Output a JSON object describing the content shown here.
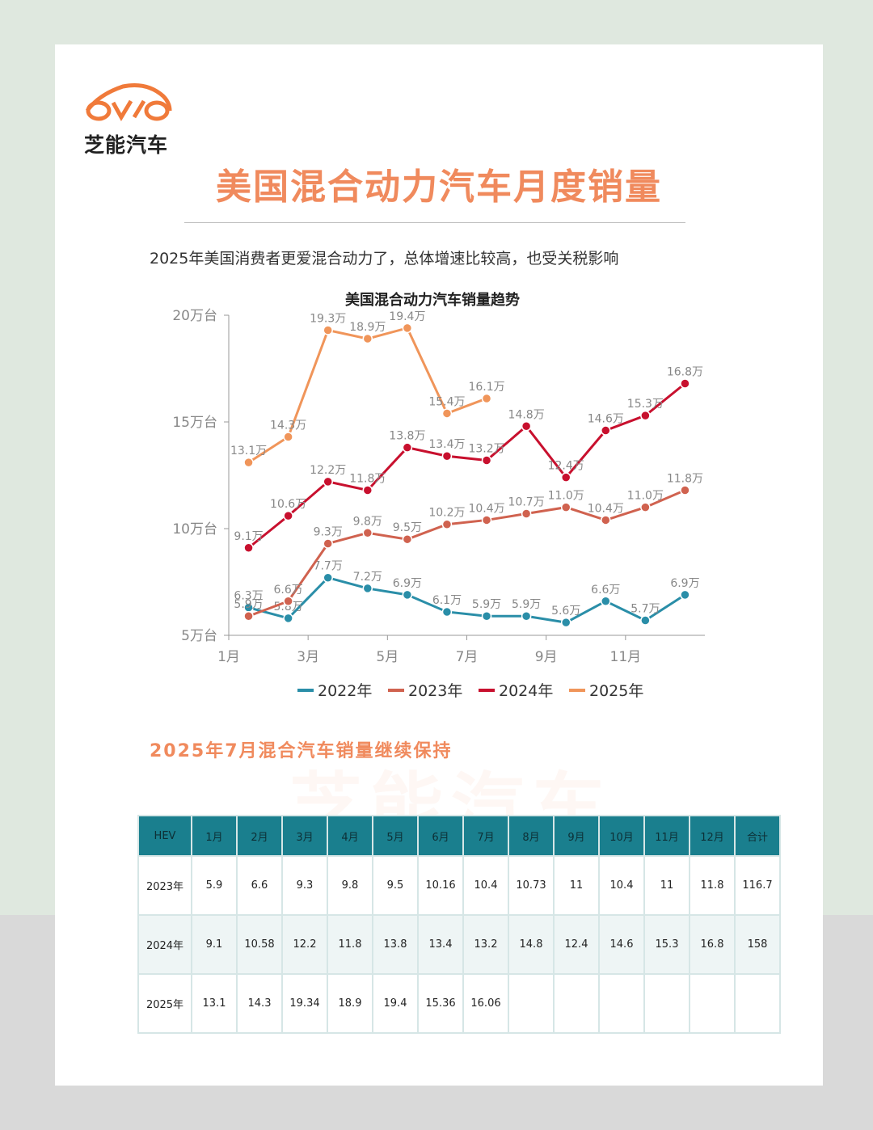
{
  "header": {
    "brand": "芝能汽车",
    "title": "美国混合动力汽车月度销量",
    "subtitle": "2025年美国消费者更爱混合动力了，总体增速比较高，也受关税影响"
  },
  "chart_data": {
    "type": "line",
    "title": "美国混合动力汽车销量趋势",
    "categories": [
      "1月",
      null,
      "3月",
      null,
      "5月",
      null,
      "7月",
      null,
      "9月",
      null,
      "11月",
      null
    ],
    "ylim": [
      5,
      20
    ],
    "yticks": [
      {
        "value": 5,
        "label": "5万台"
      },
      {
        "value": 10,
        "label": "10万台"
      },
      {
        "value": 15,
        "label": "15万台"
      },
      {
        "value": 20,
        "label": "20万台"
      }
    ],
    "series": [
      {
        "name": "2022年",
        "color": "#2a8ea8",
        "values": [
          6.3,
          5.8,
          7.7,
          7.2,
          6.9,
          6.1,
          5.9,
          5.9,
          5.6,
          6.6,
          5.7,
          6.9
        ],
        "value_labels": [
          "6.3万",
          "5.8万",
          "7.7万",
          "7.2万",
          "6.9万",
          "6.1万",
          "5.9万",
          "5.9万",
          "5.6万",
          "6.6万",
          "5.7万",
          "6.9万"
        ]
      },
      {
        "name": "2023年",
        "color": "#d0624f",
        "values": [
          5.9,
          6.6,
          9.3,
          9.8,
          9.5,
          10.2,
          10.4,
          10.7,
          11,
          10.4,
          11,
          11.8
        ],
        "value_labels": [
          "5.9万",
          "6.6万",
          "9.3万",
          "9.8万",
          "9.5万",
          "10.2万",
          "10.4万",
          "10.7万",
          "11.0万",
          "10.4万",
          "11.0万",
          "11.8万"
        ]
      },
      {
        "name": "2024年",
        "color": "#c8102e",
        "values": [
          9.1,
          10.6,
          12.2,
          11.8,
          13.8,
          13.4,
          13.2,
          14.8,
          12.4,
          14.6,
          15.3,
          16.8
        ],
        "value_labels": [
          "9.1万",
          "10.6万",
          "12.2万",
          "11.8万",
          "13.8万",
          "13.4万",
          "13.2万",
          "14.8万",
          "12.4万",
          "14.6万",
          "15.3万",
          "16.8万"
        ]
      },
      {
        "name": "2025年",
        "color": "#f0955a",
        "values": [
          13.1,
          14.3,
          19.3,
          18.9,
          19.4,
          15.4,
          16.1,
          null,
          null,
          null,
          null,
          null
        ],
        "value_labels": [
          "13.1万",
          "14.3万",
          "19.3万",
          "18.9万",
          "19.4万",
          "15.4万",
          "16.1万",
          null,
          null,
          null,
          null,
          null
        ]
      }
    ]
  },
  "section": {
    "heading": "2025年7月混合汽车销量继续保持"
  },
  "table": {
    "header": [
      "HEV",
      "1月",
      "2月",
      "3月",
      "4月",
      "5月",
      "6月",
      "7月",
      "8月",
      "9月",
      "10月",
      "11月",
      "12月",
      "合计"
    ],
    "rows": [
      [
        "2023年",
        "5.9",
        "6.6",
        "9.3",
        "9.8",
        "9.5",
        "10.16",
        "10.4",
        "10.73",
        "11",
        "10.4",
        "11",
        "11.8",
        "116.7"
      ],
      [
        "2024年",
        "9.1",
        "10.58",
        "12.2",
        "11.8",
        "13.8",
        "13.4",
        "13.2",
        "14.8",
        "12.4",
        "14.6",
        "15.3",
        "16.8",
        "158"
      ],
      [
        "2025年",
        "13.1",
        "14.3",
        "19.34",
        "18.9",
        "19.4",
        "15.36",
        "16.06"
      ]
    ]
  }
}
